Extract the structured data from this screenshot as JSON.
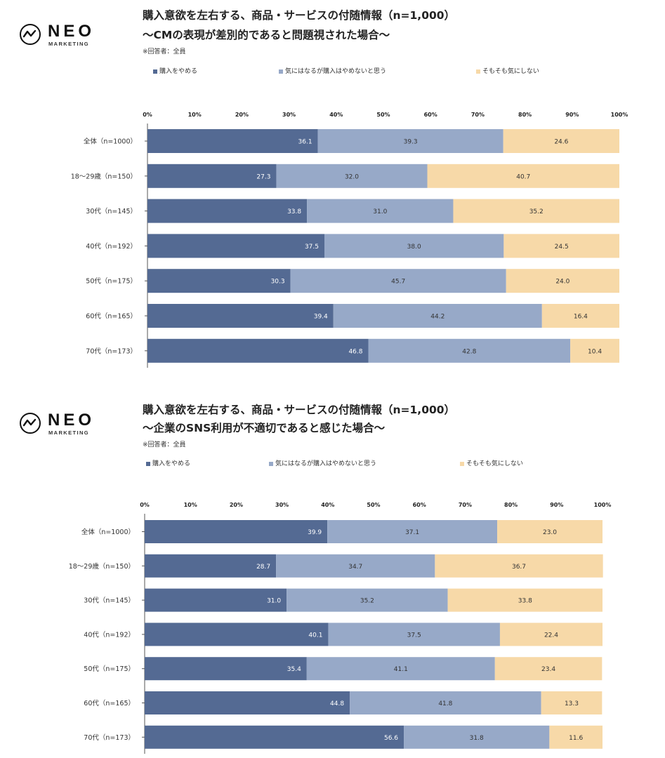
{
  "colors": {
    "s0": "#546a93",
    "s1": "#97a9c8",
    "s2": "#f7d9a8"
  },
  "logo": {
    "word": "NEO",
    "sub": "MARKETING"
  },
  "chart_data": [
    {
      "type": "bar",
      "orientation": "horizontal-stacked-100",
      "title": "購入意欲を左右する、商品・サービスの付随情報（n=1,000）",
      "subtitle": "〜CMの表現が差別的であると問題視された場合〜",
      "note": "※回答者：全員",
      "xlim": [
        0,
        100
      ],
      "ticks": [
        "0%",
        "10%",
        "20%",
        "30%",
        "40%",
        "50%",
        "60%",
        "70%",
        "80%",
        "90%",
        "100%"
      ],
      "categories": [
        "全体（n=1000）",
        "18〜29歳（n=150）",
        "30代（n=145）",
        "40代（n=192）",
        "50代（n=175）",
        "60代（n=165）",
        "70代（n=173）"
      ],
      "series": [
        {
          "name": "購入をやめる",
          "values": [
            36.1,
            27.3,
            33.8,
            37.5,
            30.3,
            39.4,
            46.8
          ]
        },
        {
          "name": "気にはなるが購入はやめないと思う",
          "values": [
            39.3,
            32.0,
            31.0,
            38.0,
            45.7,
            44.2,
            42.8
          ]
        },
        {
          "name": "そもそも気にしない",
          "values": [
            24.6,
            40.7,
            35.2,
            24.5,
            24.0,
            16.4,
            10.4
          ]
        }
      ]
    },
    {
      "type": "bar",
      "orientation": "horizontal-stacked-100",
      "title": "購入意欲を左右する、商品・サービスの付随情報（n=1,000）",
      "subtitle": "〜企業のSNS利用が不適切であると感じた場合〜",
      "note": "※回答者：全員",
      "xlim": [
        0,
        100
      ],
      "ticks": [
        "0%",
        "10%",
        "20%",
        "30%",
        "40%",
        "50%",
        "60%",
        "70%",
        "80%",
        "90%",
        "100%"
      ],
      "categories": [
        "全体（n=1000）",
        "18〜29歳（n=150）",
        "30代（n=145）",
        "40代（n=192）",
        "50代（n=175）",
        "60代（n=165）",
        "70代（n=173）"
      ],
      "series": [
        {
          "name": "購入をやめる",
          "values": [
            39.9,
            28.7,
            31.0,
            40.1,
            35.4,
            44.8,
            56.6
          ]
        },
        {
          "name": "気にはなるが購入はやめないと思う",
          "values": [
            37.1,
            34.7,
            35.2,
            37.5,
            41.1,
            41.8,
            31.8
          ]
        },
        {
          "name": "そもそも気にしない",
          "values": [
            23.0,
            36.7,
            33.8,
            22.4,
            23.4,
            13.3,
            11.6
          ]
        }
      ]
    }
  ]
}
